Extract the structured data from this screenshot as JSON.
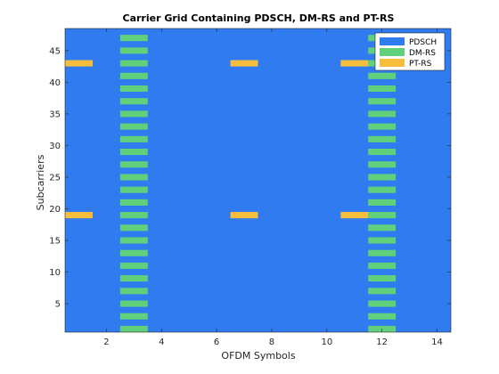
{
  "chart_data": {
    "type": "heatmap",
    "title": "Carrier Grid Containing PDSCH, DM-RS and PT-RS",
    "xlabel": "OFDM Symbols",
    "ylabel": "Subcarriers",
    "xlim": [
      0.5,
      14.5
    ],
    "ylim": [
      0.5,
      48.5
    ],
    "xticks": [
      2,
      4,
      6,
      8,
      10,
      12,
      14
    ],
    "yticks": [
      5,
      10,
      15,
      20,
      25,
      30,
      35,
      40,
      45
    ],
    "legend_position": "top-right",
    "series": [
      {
        "name": "PDSCH",
        "color": "#2f7bef",
        "description_cells": "all remaining resource elements"
      },
      {
        "name": "DM-RS",
        "color": "#60d17a",
        "symbols": [
          3,
          12
        ],
        "subcarriers": [
          1,
          3,
          5,
          7,
          9,
          11,
          13,
          15,
          17,
          19,
          21,
          23,
          25,
          27,
          29,
          31,
          33,
          35,
          37,
          39,
          41,
          43,
          45,
          47
        ]
      },
      {
        "name": "PT-RS",
        "color": "#f7bd3c",
        "symbols": [
          1,
          7,
          11
        ],
        "subcarriers": [
          19,
          43
        ]
      }
    ],
    "background_color": "#2f7bef"
  }
}
